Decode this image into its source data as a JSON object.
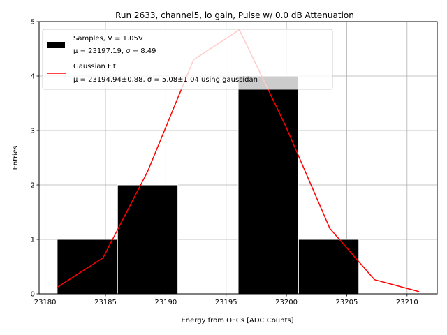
{
  "chart_data": {
    "type": "bar",
    "title": "Run 2633, channel5, lo gain, Pulse w/ 0.0 dB Attenuation",
    "xlabel": "Energy from OFCs [ADC Counts]",
    "ylabel": "Entries",
    "xlim": [
      23179.5,
      23212.5
    ],
    "ylim": [
      0,
      5
    ],
    "xticks": [
      "23180",
      "23185",
      "23190",
      "23195",
      "23200",
      "23205",
      "23210"
    ],
    "yticks": [
      "0",
      "1",
      "2",
      "3",
      "4",
      "5"
    ],
    "grid": true,
    "legend_position": "top-left",
    "bar_color": "#000000",
    "bar_edge_color": "#ffffff",
    "fit_color": "#ff0000",
    "histogram": {
      "legend_label_1": "Samples, V = 1.05V",
      "legend_label_2": "μ = 23197.19, σ = 8.49",
      "bins": [
        {
          "x0": 23181,
          "x1": 23186,
          "count": 1
        },
        {
          "x0": 23186,
          "x1": 23191,
          "count": 2
        },
        {
          "x0": 23191,
          "x1": 23196,
          "count": 0
        },
        {
          "x0": 23196,
          "x1": 23201,
          "count": 4
        },
        {
          "x0": 23201,
          "x1": 23206,
          "count": 1
        }
      ]
    },
    "fit": {
      "legend_label_1": "Gaussian Fit",
      "legend_label_2": "μ = 23194.94±0.88, σ = 5.08±1.04 using gaussidan",
      "x": [
        23181.0,
        23184.8,
        23188.5,
        23192.3,
        23196.1,
        23199.9,
        23203.6,
        23207.3,
        23211.0
      ],
      "y": [
        0.12,
        0.66,
        2.25,
        4.3,
        4.85,
        3.1,
        1.2,
        0.26,
        0.04
      ]
    }
  }
}
